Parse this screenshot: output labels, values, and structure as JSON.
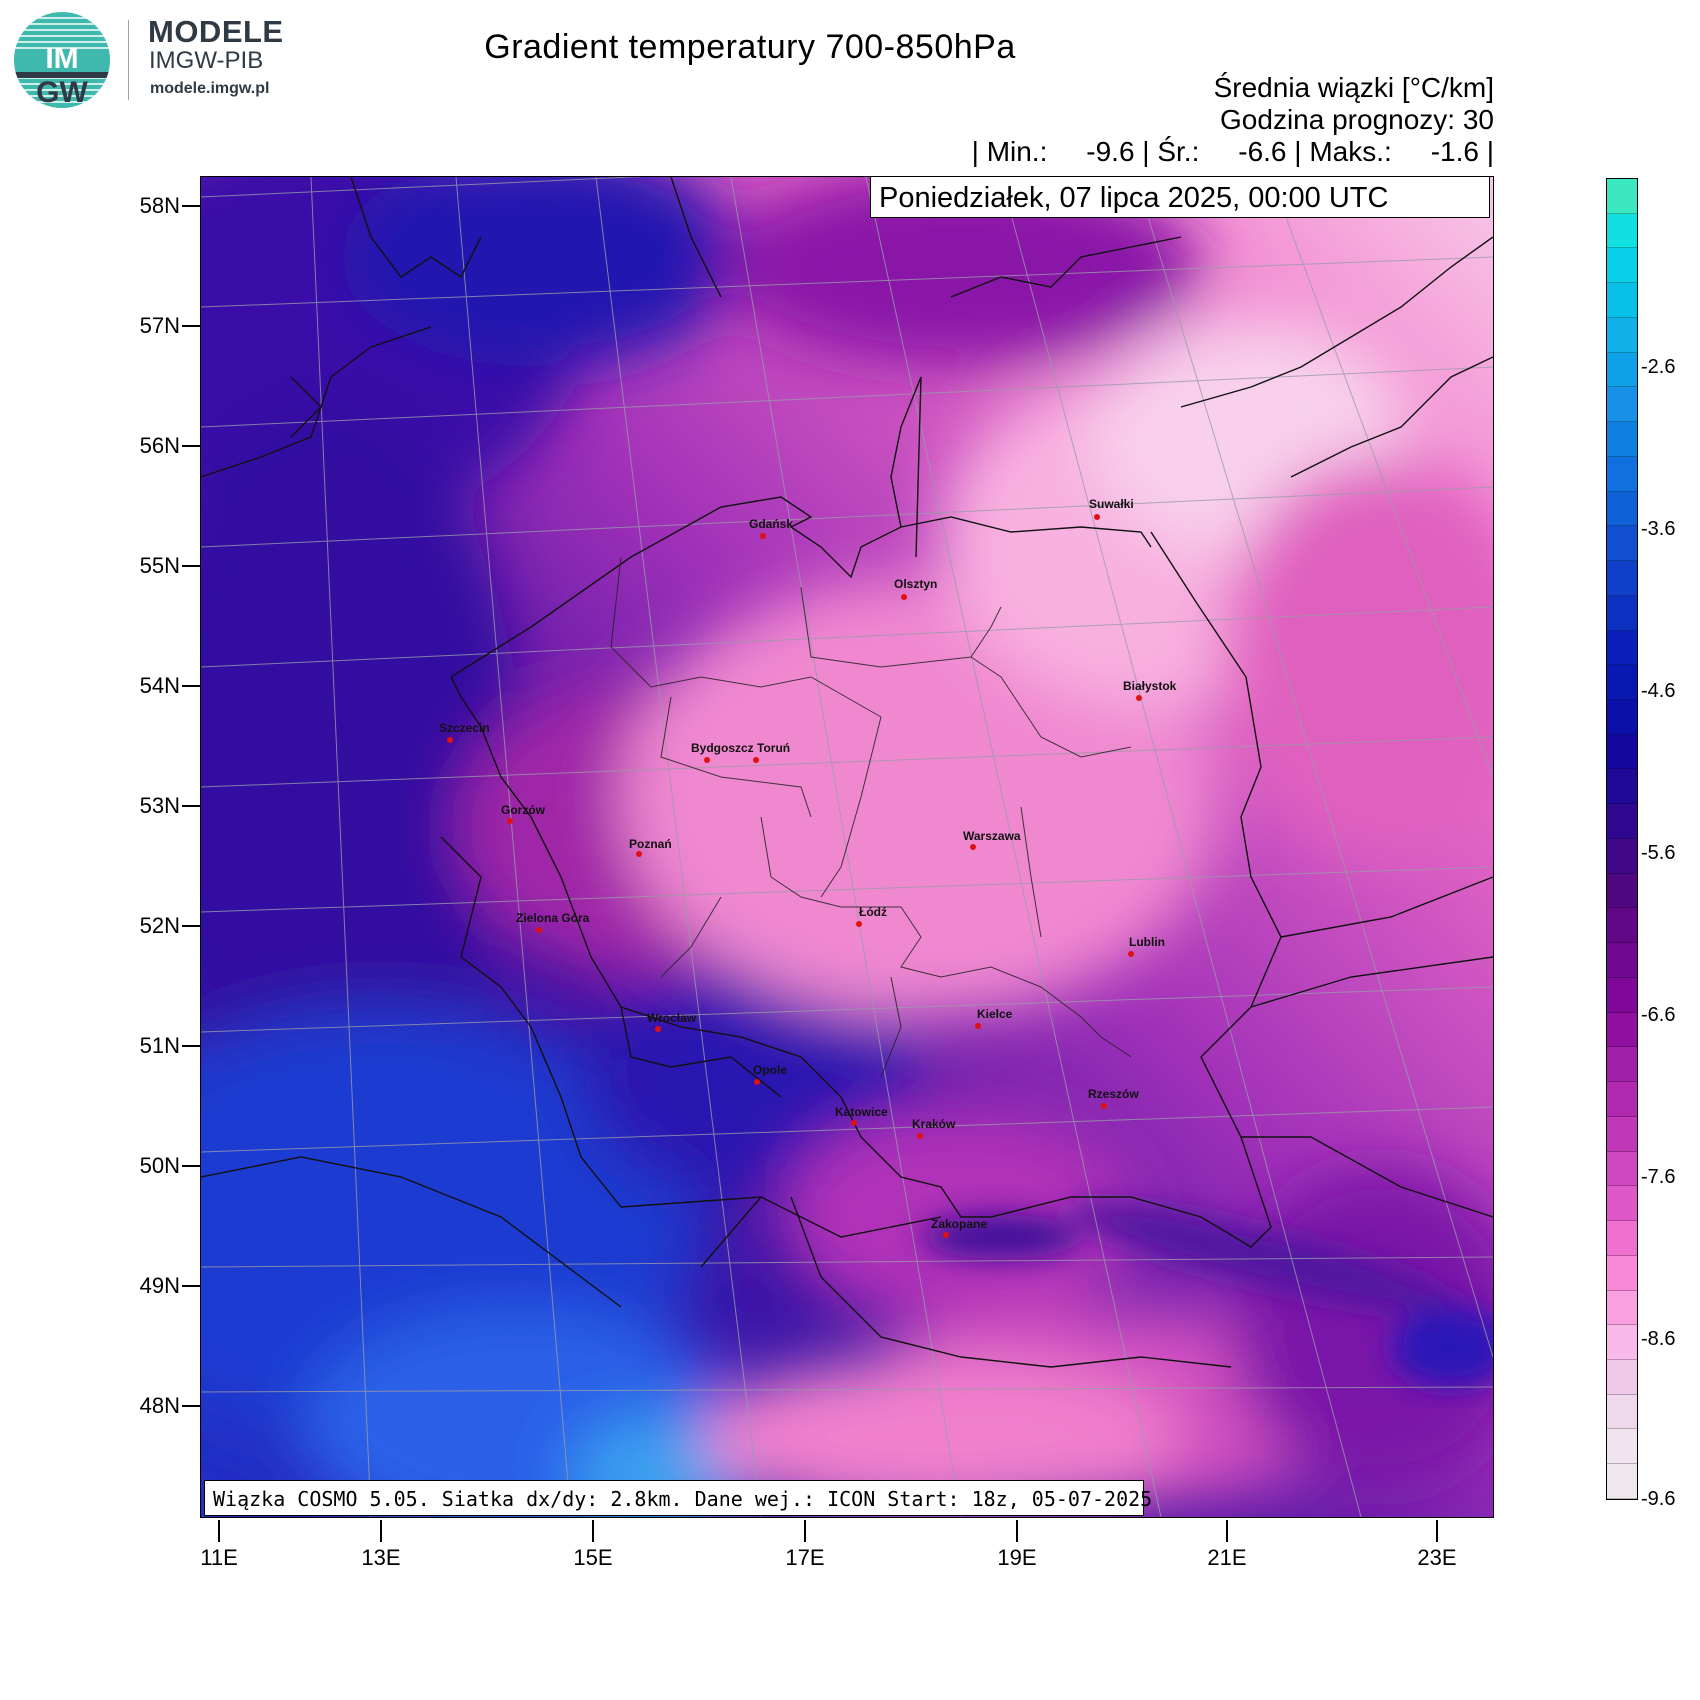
{
  "branding": {
    "logo_text_top": "IM",
    "logo_text_bottom": "GW",
    "name": "MODELE",
    "subtitle": "IMGW-PIB",
    "url": "modele.imgw.pl"
  },
  "header": {
    "title": "Gradient temperatury 700-850hPa",
    "unit_line": "Średnia wiązki [°C/km]",
    "forecast_hour_line": "Godzina prognozy: 30",
    "stats_line": "| Min.:     -9.6 | Śr.:     -6.6 | Maks.:     -1.6 |"
  },
  "date_label": "Poniedziałek, 07 lipca 2025, 00:00 UTC",
  "model_info": "Wiązka COSMO 5.05. Siatka dx/dy: 2.8km. Dane wej.: ICON Start: 18z, 05-07-2025",
  "stats": {
    "min": -9.6,
    "mean": -6.6,
    "max": -1.6
  },
  "axes": {
    "latitude_labels": [
      "58N",
      "57N",
      "56N",
      "55N",
      "54N",
      "53N",
      "52N",
      "51N",
      "50N",
      "49N",
      "48N"
    ],
    "longitude_labels": [
      "11E",
      "13E",
      "15E",
      "17E",
      "19E",
      "21E",
      "23E"
    ]
  },
  "cities": [
    {
      "name": "Gdańsk"
    },
    {
      "name": "Olsztyn"
    },
    {
      "name": "Suwałki"
    },
    {
      "name": "Białystok"
    },
    {
      "name": "Szczecin"
    },
    {
      "name": "Bydgoszcz"
    },
    {
      "name": "Toruń"
    },
    {
      "name": "Gorzów"
    },
    {
      "name": "Poznań"
    },
    {
      "name": "Warszawa"
    },
    {
      "name": "Zielona Góra"
    },
    {
      "name": "Łódź"
    },
    {
      "name": "Lublin"
    },
    {
      "name": "Wrocław"
    },
    {
      "name": "Kielce"
    },
    {
      "name": "Opole"
    },
    {
      "name": "Rzeszów"
    },
    {
      "name": "Katowice"
    },
    {
      "name": "Kraków"
    },
    {
      "name": "Zakopane"
    }
  ],
  "colorbar": {
    "tick_labels": [
      "-2.6",
      "-3.6",
      "-4.6",
      "-5.6",
      "-6.6",
      "-7.6",
      "-8.6",
      "-9.6"
    ],
    "colors": [
      "#3ce8c0",
      "#10e0e0",
      "#08d0e8",
      "#08c0e8",
      "#10b0e8",
      "#10a0e8",
      "#1890e8",
      "#1080e0",
      "#1070e0",
      "#1060d8",
      "#1050d0",
      "#1040c8",
      "#0c30c0",
      "#0a20b8",
      "#0818b0",
      "#0a10a8",
      "#1408a0",
      "#200898",
      "#300890",
      "#400888",
      "#500880",
      "#600888",
      "#700890",
      "#800898",
      "#9010a0",
      "#a020a8",
      "#b028b0",
      "#c038b8",
      "#d048c0",
      "#e058c8",
      "#f070d0",
      "#f888d8",
      "#f8a0e0",
      "#f8b8e8",
      "#f0c8e8",
      "#f0d8ec",
      "#f0e4ee",
      "#eee8ee"
    ]
  }
}
